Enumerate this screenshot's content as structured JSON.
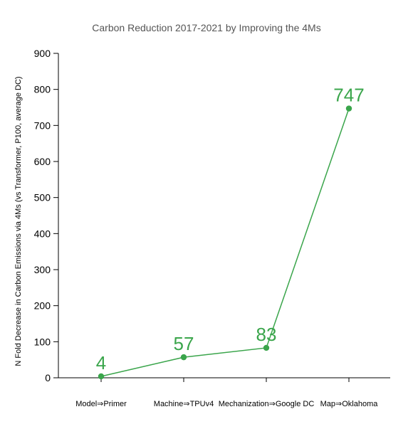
{
  "chart_data": {
    "type": "line",
    "title": "Carbon Reduction 2017-2021 by Improving the 4Ms",
    "xlabel": "",
    "ylabel": "N Fold Decrease in Carbon Emissions via 4Ms (vs Transformer, P100,  average DC)",
    "categories": [
      "Model⇒Primer",
      "Machine⇒TPUv4",
      "Mechanization⇒Google DC",
      "Map⇒Oklahoma"
    ],
    "values": [
      4,
      57,
      83,
      747
    ],
    "data_labels": [
      "4",
      "57",
      "83",
      "747"
    ],
    "ylim": [
      0,
      900
    ],
    "yticks": [
      "0",
      "100",
      "200",
      "300",
      "400",
      "500",
      "600",
      "700",
      "800",
      "900"
    ],
    "grid": false,
    "legend": "none",
    "colors": {
      "series": "#3aa54b",
      "axis": "#000000",
      "title": "#555555"
    }
  }
}
